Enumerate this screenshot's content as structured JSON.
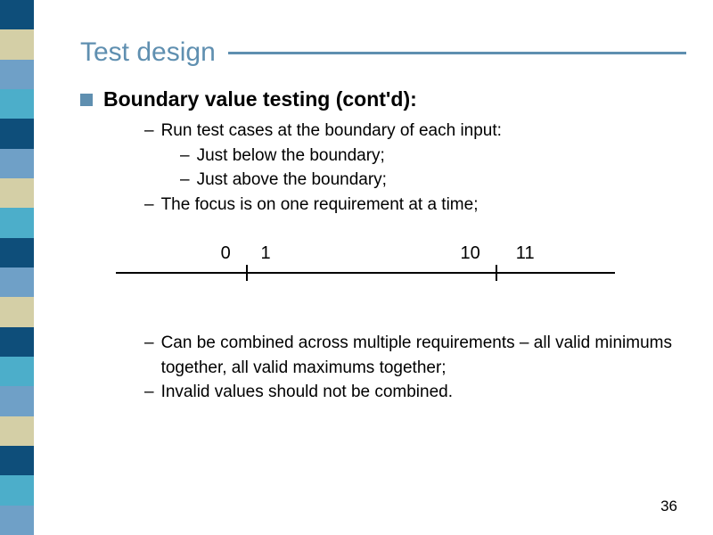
{
  "sidebar": {
    "colors": [
      "#0e4e7a",
      "#d4cfa6",
      "#6fa0c7",
      "#4caeca",
      "#0e4e7a",
      "#6fa0c7",
      "#d4cfa6",
      "#4caeca",
      "#0e4e7a",
      "#6fa0c7",
      "#d4cfa6",
      "#0e4e7a",
      "#4caeca",
      "#6fa0c7",
      "#d4cfa6",
      "#0e4e7a",
      "#4caeca",
      "#6fa0c7"
    ]
  },
  "title": "Test design",
  "heading": "Boundary value testing (cont'd):",
  "bullets_top": {
    "run": "Run test cases at the boundary of each input:",
    "below": "Just below the boundary;",
    "above": "Just above the boundary;",
    "focus": "The focus is on one requirement at a time;"
  },
  "numberline": {
    "labels": [
      "0",
      "1",
      "10",
      "11"
    ],
    "positions_pct": [
      22,
      30,
      71,
      82
    ],
    "tick_positions_pct": [
      26,
      76
    ]
  },
  "bullets_bottom": {
    "combined": "Can be combined across multiple requirements – all valid minimums together, all valid maximums together;",
    "invalid": "Invalid values should not be combined."
  },
  "page_number": "36",
  "colors": {
    "accent": "#5f8fb0",
    "text": "#000000",
    "background": "#ffffff"
  }
}
